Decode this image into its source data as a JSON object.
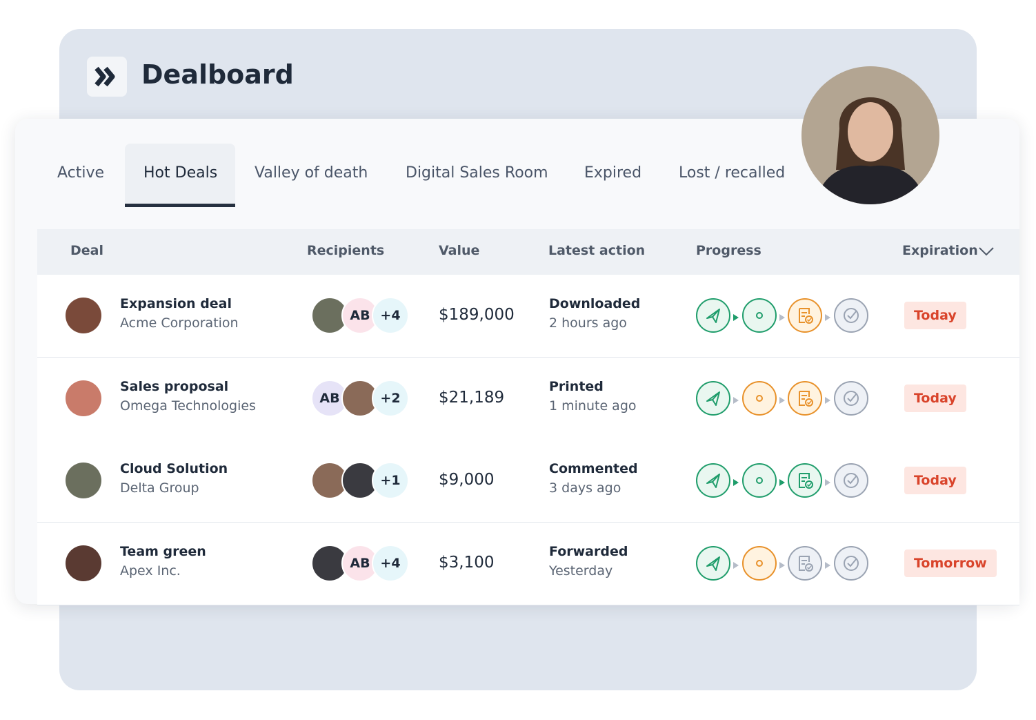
{
  "header": {
    "title": "Dealboard"
  },
  "tabs": {
    "items": [
      "Active",
      "Hot Deals",
      "Valley of death",
      "Digital Sales Room",
      "Expired",
      "Lost / recalled"
    ],
    "selected": 1
  },
  "table": {
    "columns": [
      "Deal",
      "Recipients",
      "Value",
      "Latest action",
      "Progress",
      "Expiration"
    ],
    "rows": [
      {
        "deal": "Expansion deal",
        "company": "Acme Corporation",
        "recipients": [
          null,
          "AB",
          "+4"
        ],
        "value": "$189,000",
        "action": "Downloaded",
        "time": "2 hours ago",
        "progress": [
          "#1f9d6b",
          "#1f9d6b",
          "#e8912a",
          "#9aa3b2"
        ],
        "expiration": "Today"
      },
      {
        "deal": "Sales proposal",
        "company": "Omega Technologies",
        "recipients": [
          "AB",
          null,
          "+2"
        ],
        "value": "$21,189",
        "action": "Printed",
        "time": "1 minute ago",
        "progress": [
          "#1f9d6b",
          "#e8912a",
          "#e8912a",
          "#9aa3b2"
        ],
        "expiration": "Today"
      },
      {
        "deal": "Cloud Solution",
        "company": "Delta Group",
        "recipients": [
          null,
          null,
          "+1"
        ],
        "value": "$9,000",
        "action": "Commented",
        "time": "3 days ago",
        "progress": [
          "#1f9d6b",
          "#1f9d6b",
          "#1f9d6b",
          "#9aa3b2"
        ],
        "expiration": "Today"
      },
      {
        "deal": "Team green",
        "company": "Apex Inc.",
        "recipients": [
          null,
          "AB",
          "+4"
        ],
        "value": "$3,100",
        "action": "Forwarded",
        "time": "Yesterday",
        "progress": [
          "#1f9d6b",
          "#e8912a",
          "#9aa3b2",
          "#9aa3b2"
        ],
        "expiration": "Tomorrow"
      }
    ]
  }
}
